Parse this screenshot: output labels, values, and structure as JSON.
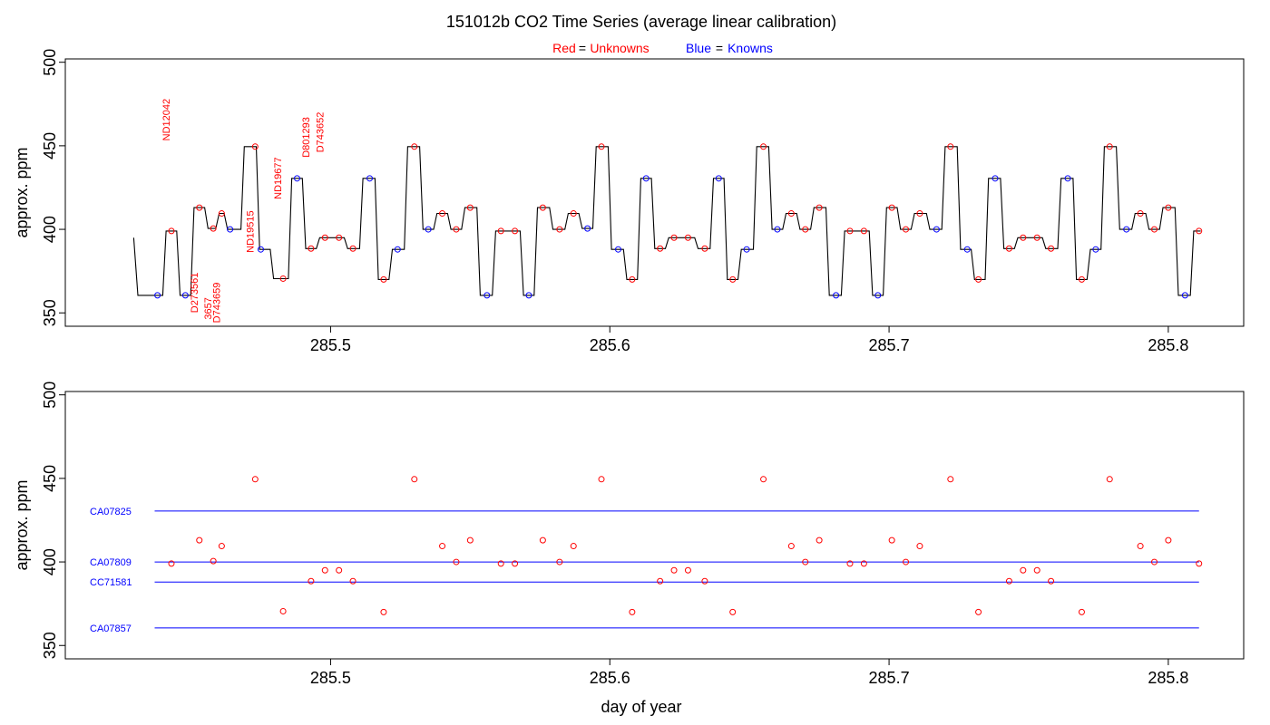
{
  "title": "151012b   CO2 Time Series (average linear calibration)",
  "legend": {
    "red_label": "Red",
    "eq": "=",
    "red_text": "Unknowns",
    "blue_label": "Blue",
    "blue_text": "Knowns",
    "red_color": "#ff0000",
    "blue_color": "#0000ff"
  },
  "chart_data": [
    {
      "type": "line",
      "panel": "top",
      "xlabel": "",
      "ylabel": "approx. ppm",
      "xlim": [
        285.405,
        285.827
      ],
      "ylim": [
        342,
        502
      ],
      "x_ticks": [
        285.5,
        285.6,
        285.7,
        285.8
      ],
      "x_tick_labels": [
        "285.5",
        "285.6",
        "285.7",
        "285.8"
      ],
      "y_ticks": [
        350,
        400,
        450,
        500
      ],
      "y_tick_labels": [
        "350",
        "400",
        "450",
        "500"
      ],
      "trace_color": "#000000",
      "blue_markers": [
        [
          285.438,
          360.5
        ],
        [
          285.448,
          360.5
        ],
        [
          285.464,
          400.0
        ],
        [
          285.475,
          388.0
        ],
        [
          285.488,
          430.5
        ],
        [
          285.514,
          430.5
        ],
        [
          285.524,
          388.0
        ],
        [
          285.535,
          400.0
        ],
        [
          285.556,
          360.5
        ],
        [
          285.571,
          360.5
        ],
        [
          285.592,
          400.5
        ],
        [
          285.603,
          388.0
        ],
        [
          285.613,
          430.5
        ],
        [
          285.639,
          430.5
        ],
        [
          285.649,
          388.0
        ],
        [
          285.66,
          400.0
        ],
        [
          285.681,
          360.5
        ],
        [
          285.696,
          360.5
        ],
        [
          285.717,
          400.0
        ],
        [
          285.728,
          388.0
        ],
        [
          285.738,
          430.5
        ],
        [
          285.764,
          430.5
        ],
        [
          285.774,
          388.0
        ],
        [
          285.785,
          400.0
        ],
        [
          285.806,
          360.5
        ]
      ],
      "red_markers": [
        [
          285.443,
          399.0
        ],
        [
          285.453,
          413.0
        ],
        [
          285.458,
          400.5
        ],
        [
          285.461,
          409.5
        ],
        [
          285.473,
          449.5
        ],
        [
          285.483,
          370.5
        ],
        [
          285.493,
          388.5
        ],
        [
          285.498,
          395.0
        ],
        [
          285.503,
          395.0
        ],
        [
          285.508,
          388.5
        ],
        [
          285.519,
          370.0
        ],
        [
          285.53,
          449.5
        ],
        [
          285.54,
          409.5
        ],
        [
          285.545,
          400.0
        ],
        [
          285.55,
          413.0
        ],
        [
          285.561,
          399.0
        ],
        [
          285.566,
          399.0
        ],
        [
          285.576,
          413.0
        ],
        [
          285.582,
          400.0
        ],
        [
          285.587,
          409.5
        ],
        [
          285.597,
          449.5
        ],
        [
          285.608,
          370.0
        ],
        [
          285.618,
          388.5
        ],
        [
          285.623,
          395.0
        ],
        [
          285.628,
          395.0
        ],
        [
          285.634,
          388.5
        ],
        [
          285.644,
          370.0
        ],
        [
          285.655,
          449.5
        ],
        [
          285.665,
          409.5
        ],
        [
          285.67,
          400.0
        ],
        [
          285.675,
          413.0
        ],
        [
          285.686,
          399.0
        ],
        [
          285.691,
          399.0
        ],
        [
          285.701,
          413.0
        ],
        [
          285.706,
          400.0
        ],
        [
          285.711,
          409.5
        ],
        [
          285.722,
          449.5
        ],
        [
          285.732,
          370.0
        ],
        [
          285.743,
          388.5
        ],
        [
          285.748,
          395.0
        ],
        [
          285.753,
          395.0
        ],
        [
          285.758,
          388.5
        ],
        [
          285.769,
          370.0
        ],
        [
          285.779,
          449.5
        ],
        [
          285.79,
          409.5
        ],
        [
          285.795,
          400.0
        ],
        [
          285.8,
          413.0
        ],
        [
          285.811,
          399.0
        ]
      ],
      "annotations": [
        {
          "text": "ND12042",
          "x": 285.443,
          "y": 453.0
        },
        {
          "text": "D273561",
          "x": 285.453,
          "y": 350.0
        },
        {
          "text": "3657",
          "x": 285.458,
          "y": 346.0
        },
        {
          "text": "D743659",
          "x": 285.461,
          "y": 344.0
        },
        {
          "text": "ND19515",
          "x": 285.473,
          "y": 386.0
        },
        {
          "text": "ND19677",
          "x": 285.483,
          "y": 418.0
        },
        {
          "text": "D801293",
          "x": 285.493,
          "y": 443.0
        },
        {
          "text": "D743652",
          "x": 285.498,
          "y": 446.0
        }
      ]
    },
    {
      "type": "scatter",
      "panel": "bottom",
      "xlabel": "day of year",
      "ylabel": "approx. ppm",
      "xlim": [
        285.405,
        285.827
      ],
      "ylim": [
        342,
        502
      ],
      "x_ticks": [
        285.5,
        285.6,
        285.7,
        285.8
      ],
      "x_tick_labels": [
        "285.5",
        "285.6",
        "285.7",
        "285.8"
      ],
      "y_ticks": [
        350,
        400,
        450,
        500
      ],
      "y_tick_labels": [
        "350",
        "400",
        "450",
        "500"
      ],
      "reference_lines": [
        {
          "name": "CA07825",
          "value": 430.5,
          "x_range": [
            285.437,
            285.811
          ]
        },
        {
          "name": "CA07809",
          "value": 400.0,
          "x_range": [
            285.437,
            285.811
          ]
        },
        {
          "name": "CC71581",
          "value": 388.0,
          "x_range": [
            285.437,
            285.811
          ]
        },
        {
          "name": "CA07857",
          "value": 360.5,
          "x_range": [
            285.437,
            285.811
          ]
        }
      ],
      "points": [
        [
          285.443,
          399.0
        ],
        [
          285.453,
          413.0
        ],
        [
          285.458,
          400.5
        ],
        [
          285.461,
          409.5
        ],
        [
          285.473,
          449.5
        ],
        [
          285.483,
          370.5
        ],
        [
          285.493,
          388.5
        ],
        [
          285.498,
          395.0
        ],
        [
          285.503,
          395.0
        ],
        [
          285.508,
          388.5
        ],
        [
          285.519,
          370.0
        ],
        [
          285.53,
          449.5
        ],
        [
          285.54,
          409.5
        ],
        [
          285.545,
          400.0
        ],
        [
          285.55,
          413.0
        ],
        [
          285.561,
          399.0
        ],
        [
          285.566,
          399.0
        ],
        [
          285.576,
          413.0
        ],
        [
          285.582,
          400.0
        ],
        [
          285.587,
          409.5
        ],
        [
          285.597,
          449.5
        ],
        [
          285.608,
          370.0
        ],
        [
          285.618,
          388.5
        ],
        [
          285.623,
          395.0
        ],
        [
          285.628,
          395.0
        ],
        [
          285.634,
          388.5
        ],
        [
          285.644,
          370.0
        ],
        [
          285.655,
          449.5
        ],
        [
          285.665,
          409.5
        ],
        [
          285.67,
          400.0
        ],
        [
          285.675,
          413.0
        ],
        [
          285.686,
          399.0
        ],
        [
          285.691,
          399.0
        ],
        [
          285.701,
          413.0
        ],
        [
          285.706,
          400.0
        ],
        [
          285.711,
          409.5
        ],
        [
          285.722,
          449.5
        ],
        [
          285.732,
          370.0
        ],
        [
          285.743,
          388.5
        ],
        [
          285.748,
          395.0
        ],
        [
          285.753,
          395.0
        ],
        [
          285.758,
          388.5
        ],
        [
          285.769,
          370.0
        ],
        [
          285.779,
          449.5
        ],
        [
          285.79,
          409.5
        ],
        [
          285.795,
          400.0
        ],
        [
          285.8,
          413.0
        ],
        [
          285.811,
          399.0
        ]
      ]
    }
  ]
}
